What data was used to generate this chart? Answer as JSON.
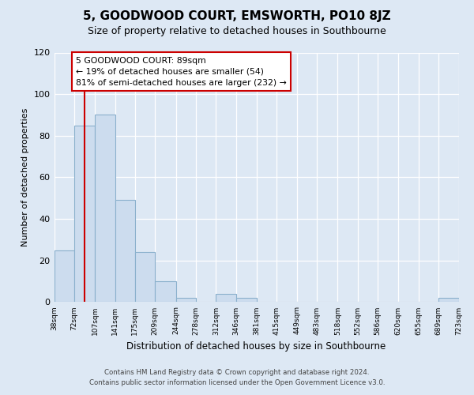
{
  "title": "5, GOODWOOD COURT, EMSWORTH, PO10 8JZ",
  "subtitle": "Size of property relative to detached houses in Southbourne",
  "xlabel": "Distribution of detached houses by size in Southbourne",
  "ylabel": "Number of detached properties",
  "bar_edges": [
    38,
    72,
    107,
    141,
    175,
    209,
    244,
    278,
    312,
    346,
    381,
    415,
    449,
    483,
    518,
    552,
    586,
    620,
    655,
    689,
    723
  ],
  "bar_heights": [
    25,
    85,
    90,
    49,
    24,
    10,
    2,
    0,
    4,
    2,
    0,
    0,
    0,
    0,
    0,
    0,
    0,
    0,
    0,
    2
  ],
  "bar_color": "#ccdcee",
  "bar_edge_color": "#8ab0cc",
  "property_value": 89,
  "vline_color": "#cc0000",
  "annotation_title": "5 GOODWOOD COURT: 89sqm",
  "annotation_line1": "← 19% of detached houses are smaller (54)",
  "annotation_line2": "81% of semi-detached houses are larger (232) →",
  "annotation_box_color": "#ffffff",
  "annotation_box_edge": "#cc0000",
  "tick_labels": [
    "38sqm",
    "72sqm",
    "107sqm",
    "141sqm",
    "175sqm",
    "209sqm",
    "244sqm",
    "278sqm",
    "312sqm",
    "346sqm",
    "381sqm",
    "415sqm",
    "449sqm",
    "483sqm",
    "518sqm",
    "552sqm",
    "586sqm",
    "620sqm",
    "655sqm",
    "689sqm",
    "723sqm"
  ],
  "ylim": [
    0,
    120
  ],
  "yticks": [
    0,
    20,
    40,
    60,
    80,
    100,
    120
  ],
  "footer_line1": "Contains HM Land Registry data © Crown copyright and database right 2024.",
  "footer_line2": "Contains public sector information licensed under the Open Government Licence v3.0.",
  "bg_color": "#dde8f4",
  "plot_bg_color": "#dde8f4"
}
